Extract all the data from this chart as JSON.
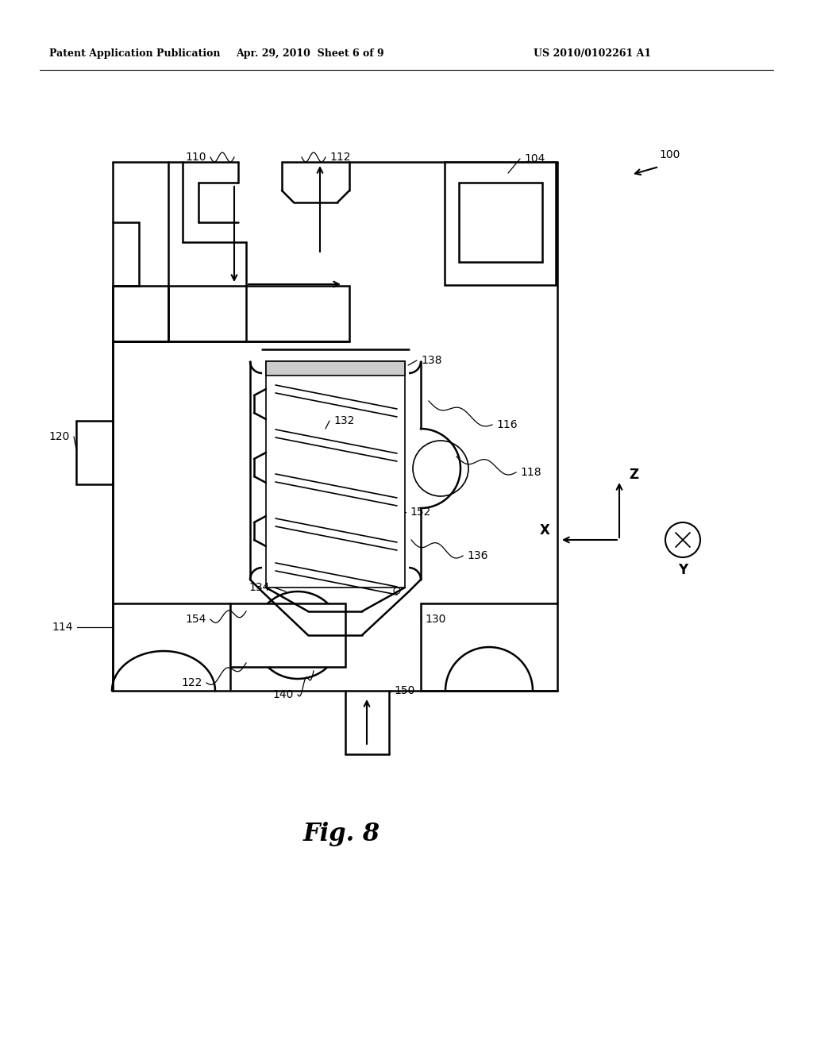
{
  "bg_color": "#ffffff",
  "line_color": "#000000",
  "header_left": "Patent Application Publication",
  "header_mid": "Apr. 29, 2010  Sheet 6 of 9",
  "header_right": "US 2010/0102261 A1",
  "caption": "Fig. 8",
  "lw_main": 1.8,
  "lw_thin": 1.2
}
